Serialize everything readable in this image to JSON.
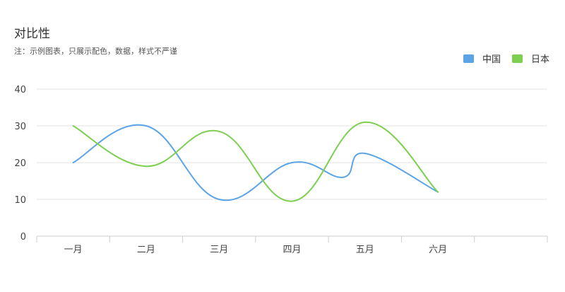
{
  "chart_data": {
    "type": "line",
    "title": "对比性",
    "subtitle": "注：示例图表，只展示配色，数据，样式不严谨",
    "categories": [
      "一月",
      "二月",
      "三月",
      "四月",
      "五月",
      "六月"
    ],
    "x_positions": [
      0.5,
      1.5,
      2.5,
      3.5,
      4.5,
      5.5
    ],
    "series": [
      {
        "name": "中国",
        "color": "#5ba4e6",
        "points": [
          [
            0.5,
            20
          ],
          [
            1.5,
            30
          ],
          [
            2.5,
            10
          ],
          [
            3.5,
            20
          ],
          [
            4.2,
            16
          ],
          [
            4.5,
            22.5
          ],
          [
            5.5,
            12
          ]
        ]
      },
      {
        "name": "日本",
        "color": "#7ccf50",
        "points": [
          [
            0.5,
            30
          ],
          [
            1.5,
            19
          ],
          [
            2.5,
            28.5
          ],
          [
            3.5,
            9.5
          ],
          [
            4.5,
            31
          ],
          [
            5.5,
            12
          ]
        ]
      }
    ],
    "yticks": [
      0,
      10,
      20,
      30,
      40
    ],
    "ylim": [
      0,
      40
    ],
    "xlim": [
      0,
      7
    ],
    "grid": true,
    "legend_position": "top-right"
  }
}
